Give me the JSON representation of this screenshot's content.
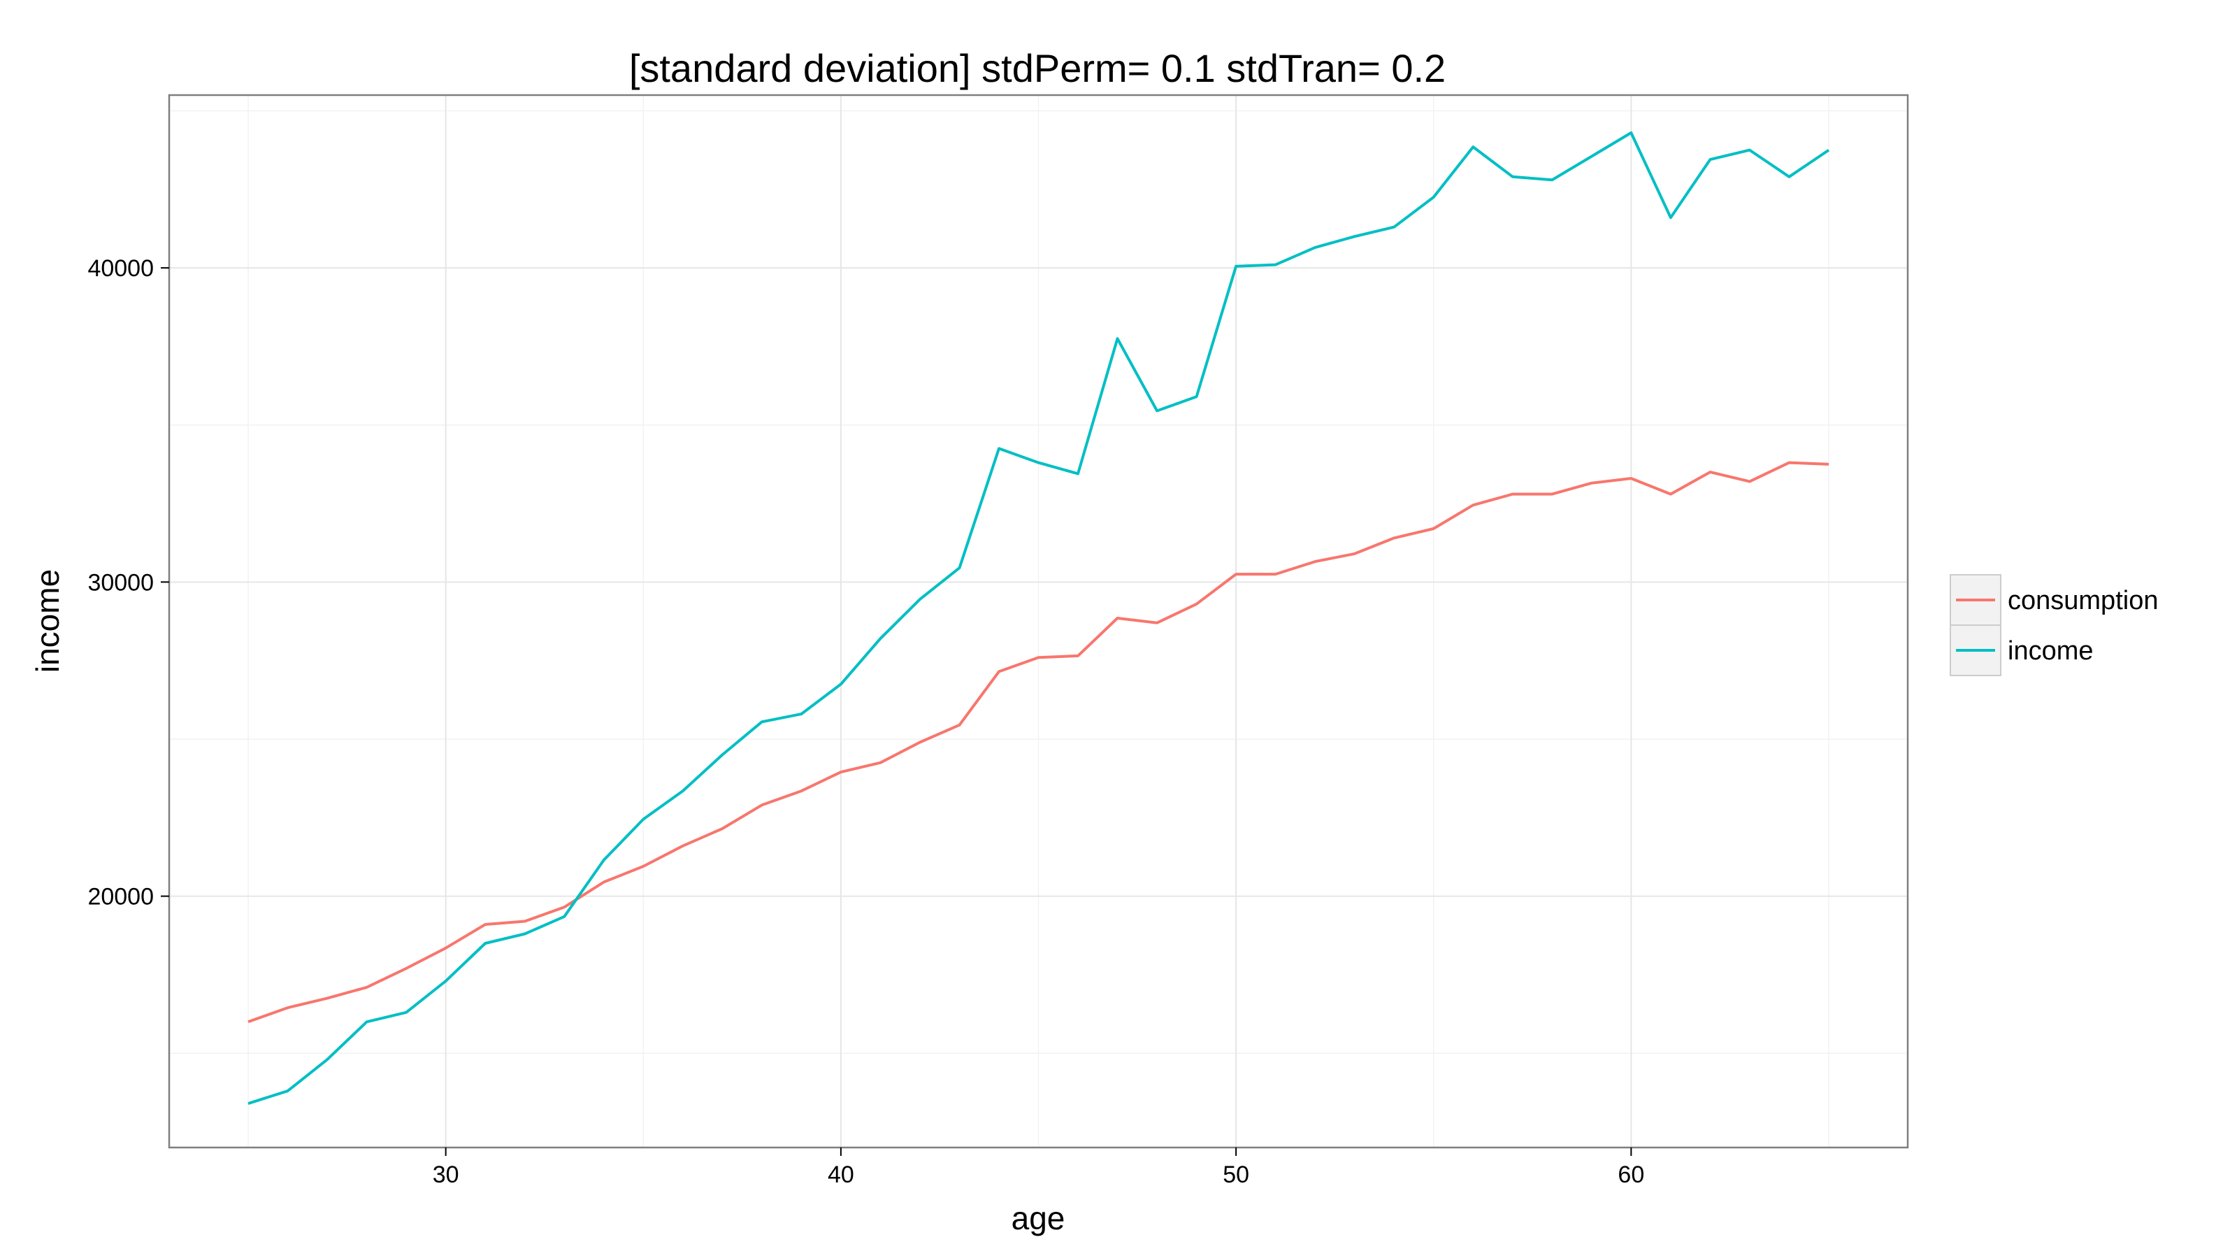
{
  "chart_data": {
    "type": "line",
    "title": "[standard deviation] stdPerm= 0.1 stdTran= 0.2",
    "xlabel": "age",
    "ylabel": "income",
    "xlim": [
      23,
      67
    ],
    "ylim": [
      12000,
      45500
    ],
    "x_ticks": [
      30,
      40,
      50,
      60
    ],
    "x_tick_labels": [
      "30",
      "40",
      "50",
      "60"
    ],
    "y_ticks": [
      20000,
      30000,
      40000
    ],
    "y_tick_labels": [
      "20000",
      "30000",
      "40000"
    ],
    "grid": true,
    "legend_position": "right",
    "x": [
      25,
      26,
      27,
      28,
      29,
      30,
      31,
      32,
      33,
      34,
      35,
      36,
      37,
      38,
      39,
      40,
      41,
      42,
      43,
      44,
      45,
      46,
      47,
      48,
      49,
      50,
      51,
      52,
      53,
      54,
      55,
      56,
      57,
      58,
      59,
      60,
      61,
      62,
      63,
      64,
      65
    ],
    "series": [
      {
        "name": "consumption",
        "color": "#F8766D",
        "values": [
          16000,
          16450,
          16750,
          17100,
          17700,
          18350,
          19100,
          19200,
          19650,
          20450,
          20950,
          21600,
          22150,
          22900,
          23350,
          23950,
          24250,
          24900,
          25450,
          27150,
          27600,
          27650,
          28850,
          28700,
          29300,
          30250,
          30250,
          30650,
          30900,
          31400,
          31700,
          32450,
          32800,
          32800,
          33150,
          33300,
          32800,
          33500,
          33200,
          33800,
          33750
        ]
      },
      {
        "name": "income",
        "color": "#00BFC4",
        "values": [
          13400,
          13800,
          14800,
          16000,
          16300,
          17300,
          18500,
          18800,
          19350,
          21150,
          22450,
          23350,
          24500,
          25550,
          25800,
          26750,
          28200,
          29450,
          30450,
          34250,
          33800,
          33450,
          37750,
          35450,
          35900,
          40050,
          40100,
          40650,
          41000,
          41300,
          42250,
          43850,
          42900,
          42800,
          43550,
          44300,
          41600,
          43450,
          43750,
          42900,
          43750
        ]
      }
    ]
  }
}
